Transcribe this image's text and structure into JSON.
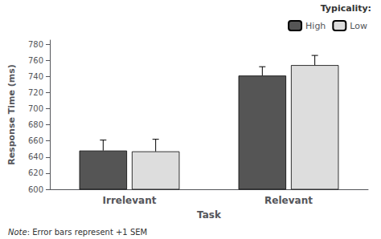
{
  "chart_data": {
    "type": "bar",
    "categories": [
      "Irrelevant",
      "Relevant"
    ],
    "series": [
      {
        "name": "High",
        "color": "#555555",
        "values": [
          648,
          741
        ],
        "errors": [
          13,
          11
        ]
      },
      {
        "name": "Low",
        "color": "#dddddd",
        "values": [
          647,
          754
        ],
        "errors": [
          15,
          12
        ]
      }
    ],
    "xlabel": "Task",
    "ylabel": "Response Time (ms)",
    "legend_title": "Typicality:",
    "legend": "upper right",
    "ylim": [
      600,
      785
    ],
    "yticks": [
      600,
      620,
      640,
      660,
      680,
      700,
      720,
      740,
      760,
      780
    ],
    "grid": false,
    "annotations": [
      {
        "text": "Note",
        "font_style": "italic"
      },
      {
        "text": ": Error bars represent +1 SEM",
        "font_style": "normal"
      }
    ]
  }
}
